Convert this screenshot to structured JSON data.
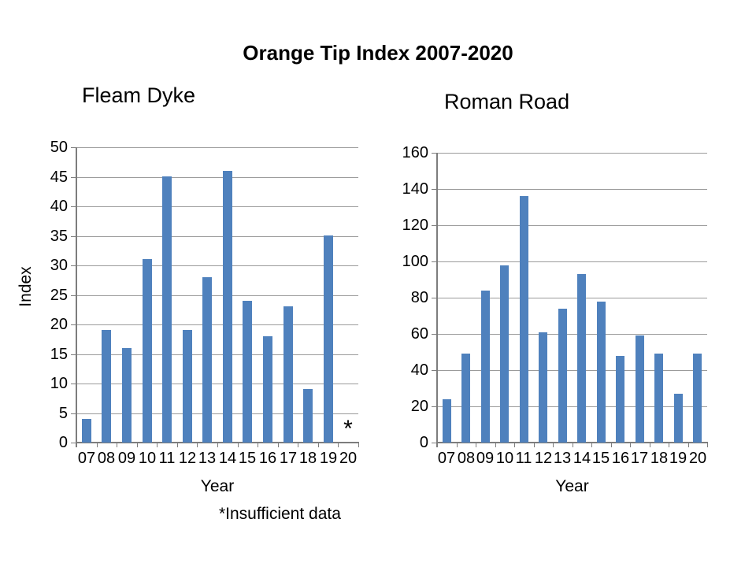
{
  "title": "Orange Tip Index 2007-2020",
  "footnote": "*Insufficient data",
  "colors": {
    "bar": "#4f81bd",
    "gridline": "#9b9b9b",
    "axis": "#7d7d7d",
    "text": "#000000"
  },
  "chart_data": [
    {
      "type": "bar",
      "title": "Fleam Dyke",
      "xlabel": "Year",
      "ylabel": "Index",
      "categories": [
        "07",
        "08",
        "09",
        "10",
        "11",
        "12",
        "13",
        "14",
        "15",
        "16",
        "17",
        "18",
        "19",
        "20"
      ],
      "values": [
        4,
        19,
        16,
        31,
        45,
        19,
        28,
        46,
        24,
        18,
        23,
        9,
        35,
        null
      ],
      "ylim": [
        0,
        50
      ],
      "ytick_step": 5,
      "grid": true,
      "legend": "none",
      "bar_color": "#4f81bd",
      "annotations": [
        {
          "category": "20",
          "text": "*"
        }
      ]
    },
    {
      "type": "bar",
      "title": "Roman Road",
      "xlabel": "Year",
      "ylabel": "",
      "categories": [
        "07",
        "08",
        "09",
        "10",
        "11",
        "12",
        "13",
        "14",
        "15",
        "16",
        "17",
        "18",
        "19",
        "20"
      ],
      "values": [
        24,
        49,
        84,
        98,
        136,
        61,
        74,
        93,
        78,
        48,
        59,
        49,
        27,
        49
      ],
      "ylim": [
        0,
        160
      ],
      "ytick_step": 20,
      "grid": true,
      "legend": "none",
      "bar_color": "#4f81bd",
      "annotations": []
    }
  ]
}
